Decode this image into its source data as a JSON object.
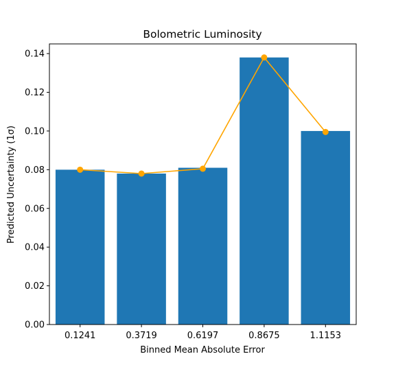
{
  "chart_data": {
    "type": "bar",
    "title": "Bolometric Luminosity",
    "xlabel": "Binned Mean Absolute Error",
    "ylabel": "Predicted Uncertainty (1σ)",
    "categories": [
      "0.1241",
      "0.3719",
      "0.6197",
      "0.8675",
      "1.1153"
    ],
    "series": [
      {
        "type": "bar",
        "color": "#1f77b4",
        "values": [
          0.08,
          0.078,
          0.081,
          0.138,
          0.1
        ]
      },
      {
        "type": "line",
        "marker": "circle",
        "color": "#ffa500",
        "values": [
          0.08,
          0.078,
          0.0805,
          0.138,
          0.0995
        ]
      }
    ],
    "ylim": [
      0,
      0.145
    ],
    "yticks": [
      "0.00",
      "0.02",
      "0.04",
      "0.06",
      "0.08",
      "0.10",
      "0.12",
      "0.14"
    ],
    "grid": false
  }
}
